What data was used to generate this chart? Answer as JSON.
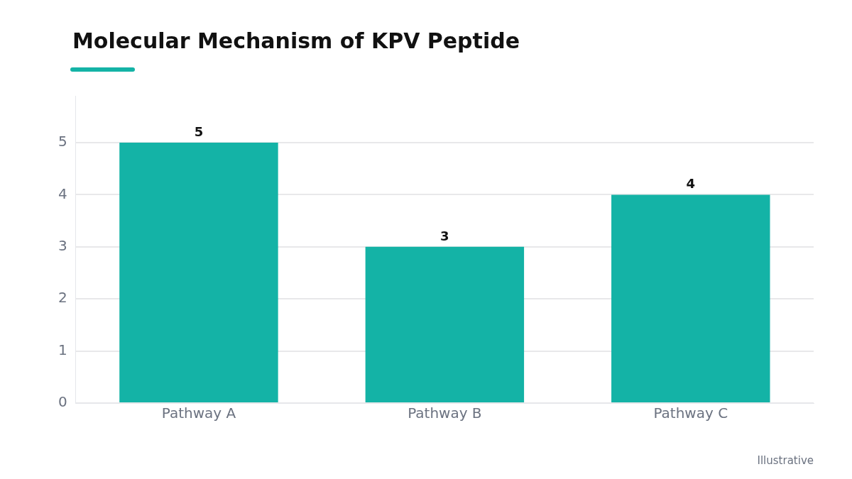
{
  "chart_data": {
    "type": "bar",
    "title": "Molecular Mechanism of KPV Peptide",
    "categories": [
      "Pathway A",
      "Pathway B",
      "Pathway C"
    ],
    "values": [
      5,
      3,
      4
    ],
    "color": "#14b3a6",
    "ylim": [
      0,
      5.9
    ],
    "yticks": [
      0,
      1,
      2,
      3,
      4,
      5
    ],
    "grid": "y",
    "data_labels": true,
    "annotations": [
      "Illustrative"
    ]
  }
}
